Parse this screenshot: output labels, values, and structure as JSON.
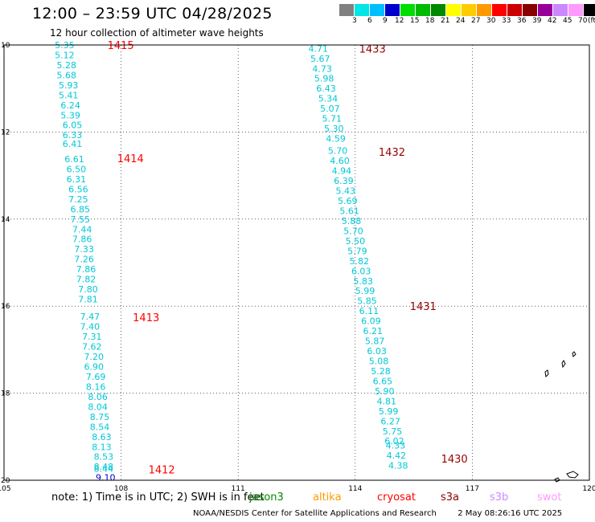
{
  "title": "12:00 – 23:59 UTC 04/28/2025",
  "subtitle": "12 hour collection of altimeter wave heights",
  "legend": {
    "unit": "(ft)",
    "bins": [
      {
        "label": "3",
        "color": "#808080"
      },
      {
        "label": "6",
        "color": "#00e5e5"
      },
      {
        "label": "9",
        "color": "#00bfff"
      },
      {
        "label": "12",
        "color": "#0000cc"
      },
      {
        "label": "15",
        "color": "#00dd00"
      },
      {
        "label": "18",
        "color": "#00bb00"
      },
      {
        "label": "21",
        "color": "#008800"
      },
      {
        "label": "24",
        "color": "#ffff00"
      },
      {
        "label": "27",
        "color": "#ffcc00"
      },
      {
        "label": "30",
        "color": "#ff9900"
      },
      {
        "label": "33",
        "color": "#ff0000"
      },
      {
        "label": "36",
        "color": "#cc0000"
      },
      {
        "label": "39",
        "color": "#880000"
      },
      {
        "label": "42",
        "color": "#990099"
      },
      {
        "label": "45",
        "color": "#cc88ff"
      },
      {
        "label": "70",
        "color": "#ff99ff"
      },
      {
        "label": "",
        "color": "#000000"
      }
    ]
  },
  "map": {
    "lon_ticks": [
      "105",
      "108",
      "111",
      "114",
      "117",
      "120"
    ],
    "lat_ticks": [
      "10",
      "12",
      "14",
      "16",
      "18",
      "20"
    ],
    "colors": {
      "cyan": "#00c8d8",
      "blue": "#0000cc",
      "time_red": "#ff0000",
      "time_dark": "#990000"
    },
    "tracks": [
      {
        "name": "track-1",
        "labels": [
          {
            "text": "1415",
            "lon": 107.65,
            "lat": 10.0,
            "color": "time_red"
          },
          {
            "text": "1414",
            "lon": 107.9,
            "lat": 12.6,
            "color": "time_red"
          },
          {
            "text": "1413",
            "lon": 108.3,
            "lat": 16.25,
            "color": "time_red"
          },
          {
            "text": "1412",
            "lon": 108.7,
            "lat": 19.75,
            "color": "time_red"
          }
        ],
        "points": [
          {
            "v": "5.35",
            "lon": 106.3,
            "lat": 10.0
          },
          {
            "v": "5.12",
            "lon": 106.3,
            "lat": 10.23
          },
          {
            "v": "5.28",
            "lon": 106.35,
            "lat": 10.46
          },
          {
            "v": "5.68",
            "lon": 106.35,
            "lat": 10.69
          },
          {
            "v": "5.93",
            "lon": 106.4,
            "lat": 10.92
          },
          {
            "v": "5.41",
            "lon": 106.4,
            "lat": 11.15
          },
          {
            "v": "6.24",
            "lon": 106.45,
            "lat": 11.38
          },
          {
            "v": "5.39",
            "lon": 106.45,
            "lat": 11.61
          },
          {
            "v": "6.05",
            "lon": 106.5,
            "lat": 11.84
          },
          {
            "v": "6.33",
            "lon": 106.5,
            "lat": 12.07
          },
          {
            "v": "6.41",
            "lon": 106.5,
            "lat": 12.27
          },
          {
            "v": "6.61",
            "lon": 106.55,
            "lat": 12.62
          },
          {
            "v": "6.50",
            "lon": 106.6,
            "lat": 12.85
          },
          {
            "v": "6.31",
            "lon": 106.6,
            "lat": 13.08
          },
          {
            "v": "6.56",
            "lon": 106.65,
            "lat": 13.31
          },
          {
            "v": "7.25",
            "lon": 106.65,
            "lat": 13.54
          },
          {
            "v": "6.85",
            "lon": 106.7,
            "lat": 13.77
          },
          {
            "v": "7.55",
            "lon": 106.7,
            "lat": 14.0
          },
          {
            "v": "7.44",
            "lon": 106.75,
            "lat": 14.23
          },
          {
            "v": "7.86",
            "lon": 106.75,
            "lat": 14.46
          },
          {
            "v": "7.33",
            "lon": 106.8,
            "lat": 14.69
          },
          {
            "v": "7.26",
            "lon": 106.8,
            "lat": 14.92
          },
          {
            "v": "7.86",
            "lon": 106.85,
            "lat": 15.15
          },
          {
            "v": "7.82",
            "lon": 106.85,
            "lat": 15.38
          },
          {
            "v": "7.80",
            "lon": 106.9,
            "lat": 15.61
          },
          {
            "v": "7.81",
            "lon": 106.9,
            "lat": 15.84
          },
          {
            "v": "7.47",
            "lon": 106.95,
            "lat": 16.24
          },
          {
            "v": "7.40",
            "lon": 106.95,
            "lat": 16.47
          },
          {
            "v": "7.31",
            "lon": 107.0,
            "lat": 16.7
          },
          {
            "v": "7.62",
            "lon": 107.0,
            "lat": 16.93
          },
          {
            "v": "7.20",
            "lon": 107.05,
            "lat": 17.16
          },
          {
            "v": "6.90",
            "lon": 107.05,
            "lat": 17.39
          },
          {
            "v": "7.69",
            "lon": 107.1,
            "lat": 17.62
          },
          {
            "v": "8.16",
            "lon": 107.1,
            "lat": 17.85
          },
          {
            "v": "8.06",
            "lon": 107.15,
            "lat": 18.08
          },
          {
            "v": "8.04",
            "lon": 107.15,
            "lat": 18.31
          },
          {
            "v": "8.75",
            "lon": 107.2,
            "lat": 18.54
          },
          {
            "v": "8.54",
            "lon": 107.2,
            "lat": 18.77
          },
          {
            "v": "8.63",
            "lon": 107.25,
            "lat": 19.0
          },
          {
            "v": "8.13",
            "lon": 107.25,
            "lat": 19.23
          },
          {
            "v": "8.53",
            "lon": 107.3,
            "lat": 19.46
          },
          {
            "v": "8.48",
            "lon": 107.3,
            "lat": 19.69
          },
          {
            "v": "8.44",
            "lon": 107.3,
            "lat": 19.73
          },
          {
            "v": "9.10",
            "lon": 107.35,
            "lat": 19.94,
            "color": "blue"
          }
        ]
      },
      {
        "name": "track-2",
        "labels": [
          {
            "text": "1433",
            "lon": 114.1,
            "lat": 10.08,
            "color": "time_dark"
          },
          {
            "text": "1432",
            "lon": 114.6,
            "lat": 12.45,
            "color": "time_dark"
          },
          {
            "text": "1431",
            "lon": 115.4,
            "lat": 16.0,
            "color": "time_dark"
          },
          {
            "text": "1430",
            "lon": 116.2,
            "lat": 19.5,
            "color": "time_dark"
          }
        ],
        "points": [
          {
            "v": "4.71",
            "lon": 112.8,
            "lat": 10.08
          },
          {
            "v": "5.67",
            "lon": 112.85,
            "lat": 10.31
          },
          {
            "v": "4.73",
            "lon": 112.9,
            "lat": 10.54
          },
          {
            "v": "5.98",
            "lon": 112.95,
            "lat": 10.77
          },
          {
            "v": "6.43",
            "lon": 113.0,
            "lat": 11.0
          },
          {
            "v": "5.34",
            "lon": 113.05,
            "lat": 11.23
          },
          {
            "v": "5.07",
            "lon": 113.1,
            "lat": 11.46
          },
          {
            "v": "5.71",
            "lon": 113.15,
            "lat": 11.69
          },
          {
            "v": "5.30",
            "lon": 113.2,
            "lat": 11.92
          },
          {
            "v": "4.59",
            "lon": 113.25,
            "lat": 12.15
          },
          {
            "v": "5.70",
            "lon": 113.3,
            "lat": 12.43
          },
          {
            "v": "4.60",
            "lon": 113.35,
            "lat": 12.66
          },
          {
            "v": "4.94",
            "lon": 113.4,
            "lat": 12.89
          },
          {
            "v": "6.39",
            "lon": 113.45,
            "lat": 13.12
          },
          {
            "v": "5.43",
            "lon": 113.5,
            "lat": 13.35
          },
          {
            "v": "5.69",
            "lon": 113.55,
            "lat": 13.58
          },
          {
            "v": "5.61",
            "lon": 113.6,
            "lat": 13.81
          },
          {
            "v": "5.88",
            "lon": 113.65,
            "lat": 14.04
          },
          {
            "v": "5.70",
            "lon": 113.7,
            "lat": 14.27
          },
          {
            "v": "5.50",
            "lon": 113.75,
            "lat": 14.5
          },
          {
            "v": "5.79",
            "lon": 113.8,
            "lat": 14.73
          },
          {
            "v": "5.82",
            "lon": 113.85,
            "lat": 14.96
          },
          {
            "v": "6.03",
            "lon": 113.9,
            "lat": 15.19
          },
          {
            "v": "5.83",
            "lon": 113.95,
            "lat": 15.42
          },
          {
            "v": "5.99",
            "lon": 114.0,
            "lat": 15.65
          },
          {
            "v": "5.85",
            "lon": 114.05,
            "lat": 15.88
          },
          {
            "v": "6.11",
            "lon": 114.1,
            "lat": 16.11
          },
          {
            "v": "6.09",
            "lon": 114.15,
            "lat": 16.34
          },
          {
            "v": "6.21",
            "lon": 114.2,
            "lat": 16.57
          },
          {
            "v": "5.87",
            "lon": 114.25,
            "lat": 16.8
          },
          {
            "v": "6.03",
            "lon": 114.3,
            "lat": 17.03
          },
          {
            "v": "5.08",
            "lon": 114.35,
            "lat": 17.26
          },
          {
            "v": "5.28",
            "lon": 114.4,
            "lat": 17.49
          },
          {
            "v": "6.65",
            "lon": 114.45,
            "lat": 17.72
          },
          {
            "v": "5.90",
            "lon": 114.5,
            "lat": 17.95
          },
          {
            "v": "4.81",
            "lon": 114.55,
            "lat": 18.18
          },
          {
            "v": "5.99",
            "lon": 114.6,
            "lat": 18.41
          },
          {
            "v": "6.27",
            "lon": 114.65,
            "lat": 18.64
          },
          {
            "v": "5.75",
            "lon": 114.7,
            "lat": 18.87
          },
          {
            "v": "6.02",
            "lon": 114.75,
            "lat": 19.1
          },
          {
            "v": "4.33",
            "lon": 114.78,
            "lat": 19.2
          },
          {
            "v": "4.42",
            "lon": 114.8,
            "lat": 19.43
          },
          {
            "v": "4.38",
            "lon": 114.85,
            "lat": 19.66
          }
        ]
      }
    ]
  },
  "footer": {
    "note": "note:  1) Time is in UTC; 2) SWH is in feet",
    "satellites": [
      {
        "name": "jason3",
        "color": "#008800"
      },
      {
        "name": "altika",
        "color": "#ff9900"
      },
      {
        "name": "cryosat",
        "color": "#ff0000"
      },
      {
        "name": "s3a",
        "color": "#880000"
      },
      {
        "name": "s3b",
        "color": "#cc88ff"
      },
      {
        "name": "swot",
        "color": "#ff99ff"
      }
    ],
    "credit": "NOAA/NESDIS Center for Satellite Applications and Research",
    "timestamp": "2 May 08:26:16 UTC 2025"
  }
}
